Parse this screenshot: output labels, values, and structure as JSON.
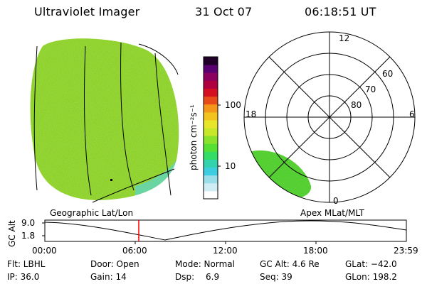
{
  "header": {
    "instrument": "Ultraviolet Imager",
    "date": "31 Oct 07",
    "time": "06:18:51 UT"
  },
  "colorbar": {
    "unit_label": "photon cm⁻²s⁻¹",
    "ticks": [
      "100",
      "10"
    ],
    "colors": [
      "#ffffff",
      "#d0ecf4",
      "#9adeea",
      "#3dcde0",
      "#33d3b0",
      "#33dd66",
      "#55e033",
      "#8ae22c",
      "#c8e62a",
      "#e8e62a",
      "#f2c21e",
      "#f4961a",
      "#e84a1a",
      "#d41020",
      "#b00040",
      "#8c0060",
      "#5a0070",
      "#200028"
    ]
  },
  "polar_plot": {
    "mlt_labels": {
      "top": "12",
      "left": "18",
      "right": "6",
      "bottom": "0"
    },
    "lat_labels": [
      "60",
      "70",
      "80"
    ],
    "coverage_color": "#5edc3c"
  },
  "earth_image": {
    "fill_color": "#9fe03a",
    "edge_color": "#5ed6c8"
  },
  "timeline": {
    "left_title": "Geographic Lat/Lon",
    "right_title": "Apex MLat/MLT",
    "axis_label": "GC Alt",
    "y_ticks": [
      "9.0",
      "1.8"
    ],
    "x_ticks": [
      "00:00",
      "06:00",
      "12:00",
      "18:00",
      "23:59"
    ],
    "cursor_color": "#ff0000"
  },
  "status": {
    "flt": "Flt: LBHL",
    "ip": "IP: 36.0",
    "door": "Door: Open",
    "gain": "Gain: 14",
    "mode": "Mode: Normal",
    "dsp_label": "Dsp:",
    "dsp_value": "6.9",
    "gc_alt": "GC Alt: 4.6 Re",
    "seq": "Seq: 39",
    "glat": "GLat: −42.0",
    "glon": "GLon: 198.2"
  }
}
